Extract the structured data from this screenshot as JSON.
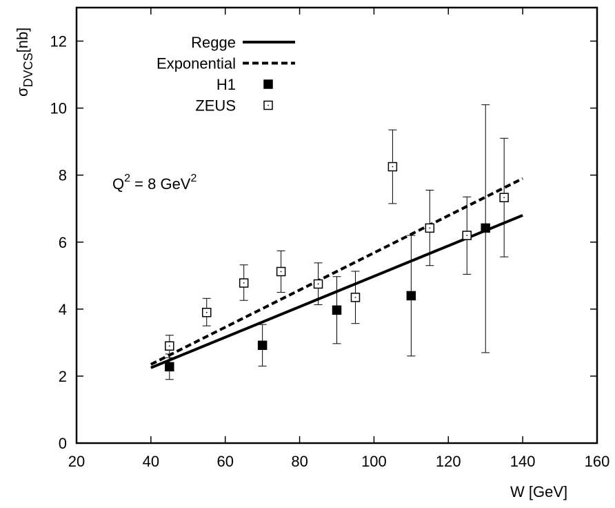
{
  "chart_data": {
    "type": "scatter",
    "xlabel": "W [GeV]",
    "ylabel": {
      "symbol": "σ",
      "subscript": "DVCS",
      "unit": "[nb]"
    },
    "xlim": [
      20,
      160
    ],
    "ylim": [
      0,
      13
    ],
    "xticks": [
      20,
      40,
      60,
      80,
      100,
      120,
      140,
      160
    ],
    "yticks": [
      0,
      2,
      4,
      6,
      8,
      10,
      12
    ],
    "grid": false,
    "legend_position": "top-left",
    "annotation": {
      "base": "Q",
      "sup1": "2",
      "middle": " = 8 GeV",
      "sup2": "2"
    },
    "series": [
      {
        "name": "Regge",
        "kind": "line",
        "style": "solid",
        "x": [
          40,
          140
        ],
        "y": [
          2.25,
          6.8
        ]
      },
      {
        "name": "Exponential",
        "kind": "line",
        "style": "dashed",
        "x": [
          40,
          140
        ],
        "y": [
          2.35,
          7.9
        ]
      },
      {
        "name": "H1",
        "kind": "points",
        "marker": "filled-square",
        "x": [
          45,
          70,
          90,
          110,
          130
        ],
        "y": [
          2.28,
          2.92,
          3.97,
          4.4,
          6.42
        ],
        "err_low": [
          0.38,
          0.62,
          1.0,
          1.8,
          3.72
        ],
        "err_high": [
          0.38,
          0.62,
          1.0,
          1.8,
          3.68
        ]
      },
      {
        "name": "ZEUS",
        "kind": "points",
        "marker": "open-square",
        "x": [
          45,
          55,
          65,
          75,
          85,
          95,
          105,
          115,
          125,
          135
        ],
        "y": [
          2.9,
          3.9,
          4.78,
          5.12,
          4.75,
          4.35,
          8.25,
          6.42,
          6.2,
          7.33
        ],
        "err_low": [
          0.35,
          0.4,
          0.52,
          0.62,
          0.62,
          0.78,
          1.1,
          1.12,
          1.16,
          1.77
        ],
        "err_high": [
          0.32,
          0.42,
          0.54,
          0.62,
          0.63,
          0.78,
          1.1,
          1.13,
          1.15,
          1.77
        ]
      }
    ]
  }
}
